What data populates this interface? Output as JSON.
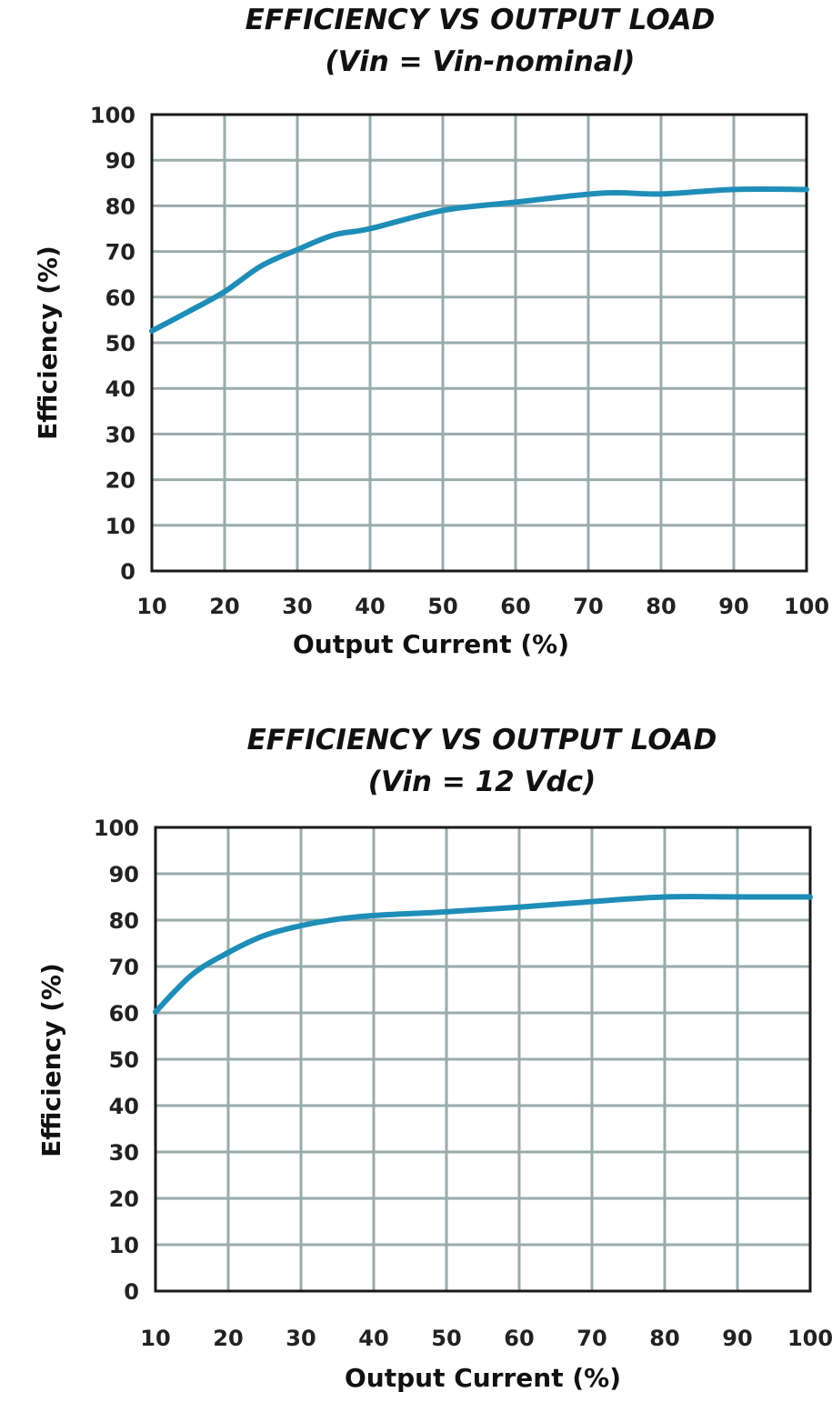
{
  "chart_data": [
    {
      "type": "line",
      "title": "EFFICIENCY VS OUTPUT LOAD",
      "subtitle": "(Vin = Vin-nominal)",
      "xlabel": "Output Current (%)",
      "ylabel": "Efficiency (%)",
      "xlim": [
        10,
        100
      ],
      "ylim": [
        0,
        100
      ],
      "xticks": [
        "10",
        "20",
        "30",
        "40",
        "50",
        "60",
        "70",
        "80",
        "90",
        "100"
      ],
      "yticks": [
        "0",
        "10",
        "20",
        "30",
        "40",
        "50",
        "60",
        "70",
        "80",
        "90",
        "100"
      ],
      "grid": true,
      "line_color": "#1e8db8",
      "grid_color": "#9aabab",
      "x": [
        10,
        15,
        20,
        25,
        30,
        35,
        40,
        50,
        60,
        72,
        80,
        90,
        100
      ],
      "y": [
        52.6,
        56.8,
        61.2,
        66.8,
        70.4,
        73.6,
        75,
        79,
        80.8,
        82.8,
        82.6,
        83.6,
        83.6
      ]
    },
    {
      "type": "line",
      "title": "EFFICIENCY VS OUTPUT LOAD",
      "subtitle": "(Vin = 12 Vdc)",
      "xlabel": "Output Current (%)",
      "ylabel": "Efficiency (%)",
      "xlim": [
        10,
        100
      ],
      "ylim": [
        0,
        100
      ],
      "xticks": [
        "10",
        "20",
        "30",
        "40",
        "50",
        "60",
        "70",
        "80",
        "90",
        "100"
      ],
      "yticks": [
        "0",
        "10",
        "20",
        "30",
        "40",
        "50",
        "60",
        "70",
        "80",
        "90",
        "100"
      ],
      "grid": true,
      "line_color": "#1e8db8",
      "grid_color": "#9aabab",
      "x": [
        10,
        15,
        20,
        25,
        30,
        35,
        40,
        50,
        60,
        70,
        80,
        90,
        100
      ],
      "y": [
        60.2,
        68.2,
        73,
        76.7,
        78.8,
        80.2,
        81,
        81.8,
        82.8,
        84,
        85,
        85,
        85
      ]
    }
  ]
}
